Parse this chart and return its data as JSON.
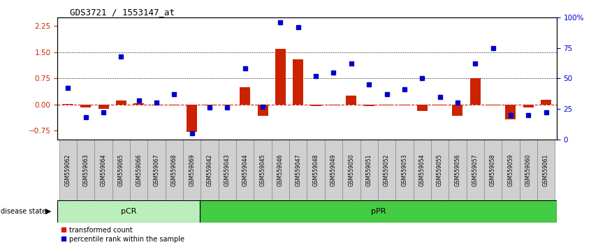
{
  "title": "GDS3721 / 1553147_at",
  "samples": [
    "GSM559062",
    "GSM559063",
    "GSM559064",
    "GSM559065",
    "GSM559066",
    "GSM559067",
    "GSM559068",
    "GSM559069",
    "GSM559042",
    "GSM559043",
    "GSM559044",
    "GSM559045",
    "GSM559046",
    "GSM559047",
    "GSM559048",
    "GSM559049",
    "GSM559050",
    "GSM559051",
    "GSM559052",
    "GSM559053",
    "GSM559054",
    "GSM559055",
    "GSM559056",
    "GSM559057",
    "GSM559058",
    "GSM559059",
    "GSM559060",
    "GSM559061"
  ],
  "transformed_count": [
    0.02,
    -0.08,
    -0.13,
    0.12,
    0.04,
    -0.03,
    -0.03,
    -0.78,
    -0.03,
    -0.03,
    0.5,
    -0.32,
    1.6,
    1.3,
    -0.05,
    -0.03,
    0.26,
    -0.05,
    -0.03,
    -0.03,
    -0.18,
    -0.03,
    -0.32,
    0.75,
    -0.03,
    -0.42,
    -0.08,
    0.14
  ],
  "percentile_rank": [
    42,
    18,
    22,
    68,
    32,
    30,
    37,
    5,
    26,
    26,
    58,
    27,
    96,
    92,
    52,
    55,
    62,
    45,
    37,
    41,
    50,
    35,
    30,
    62,
    75,
    20,
    20,
    22
  ],
  "pCR_count": 8,
  "pPR_count": 20,
  "ylim_left": [
    -1.0,
    2.5
  ],
  "ylim_right": [
    0,
    100
  ],
  "yticks_left": [
    -0.75,
    0.0,
    0.75,
    1.5,
    2.25
  ],
  "yticks_right": [
    0,
    25,
    50,
    75,
    100
  ],
  "hline_values": [
    0.75,
    1.5
  ],
  "bar_color": "#cc2200",
  "dot_color": "#0000cc",
  "pCR_color": "#bbeebb",
  "pPR_color": "#44cc44",
  "zero_line_color": "#cc2200",
  "plot_bg": "#f0f0f0",
  "label_bg": "#d0d0d0"
}
